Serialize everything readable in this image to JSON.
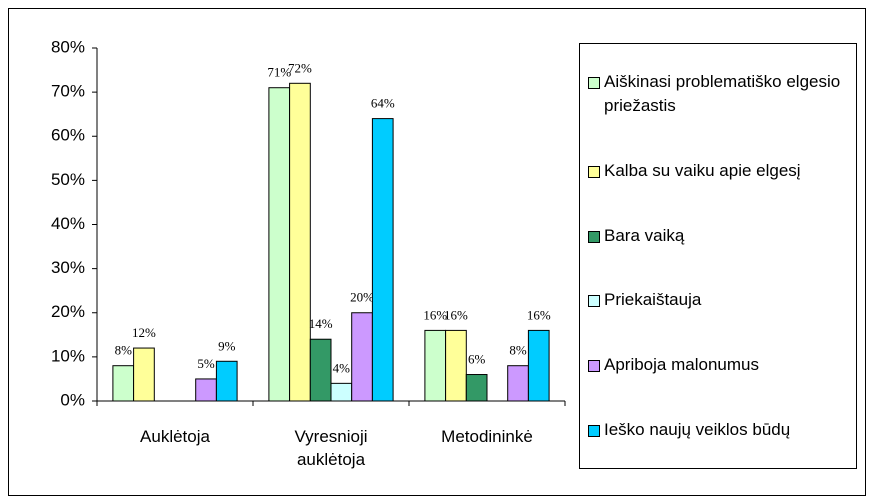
{
  "chart_data": {
    "type": "bar",
    "categories": [
      "Auklėtoja",
      "Vyresnioji auklėtoja",
      "Metodininkė"
    ],
    "series": [
      {
        "name": "Aiškinasi problematiško elgesio priežastis",
        "color": "#ccffcc",
        "values": [
          8,
          71,
          16
        ],
        "value_labels": [
          "8%",
          "71%",
          "16%"
        ]
      },
      {
        "name": "Kalba su vaiku apie elgesį",
        "color": "#ffff99",
        "values": [
          12,
          72,
          16
        ],
        "value_labels": [
          "12%",
          "72%",
          "16%"
        ]
      },
      {
        "name": "Bara vaiką",
        "color": "#339966",
        "values": [
          null,
          14,
          6
        ],
        "value_labels": [
          null,
          "14%",
          "6%"
        ]
      },
      {
        "name": "Priekaištauja",
        "color": "#ccffff",
        "values": [
          null,
          4,
          null
        ],
        "value_labels": [
          null,
          "4%",
          null
        ]
      },
      {
        "name": "Apriboja malonumus",
        "color": "#cc99ff",
        "values": [
          5,
          20,
          8
        ],
        "value_labels": [
          "5%",
          "20%",
          "8%"
        ]
      },
      {
        "name": "Ieško naujų veiklos būdų",
        "color": "#00ccff",
        "values": [
          9,
          64,
          16
        ],
        "value_labels": [
          "9%",
          "64%",
          "16%"
        ]
      }
    ],
    "ylim": [
      0,
      80
    ],
    "yticks": [
      {
        "value": 0,
        "label": "0%"
      },
      {
        "value": 10,
        "label": "10%"
      },
      {
        "value": 20,
        "label": "20%"
      },
      {
        "value": 30,
        "label": "30%"
      },
      {
        "value": 40,
        "label": "40%"
      },
      {
        "value": 50,
        "label": "50%"
      },
      {
        "value": 60,
        "label": "60%"
      },
      {
        "value": 70,
        "label": "70%"
      },
      {
        "value": 80,
        "label": "80%"
      }
    ],
    "legend": "right"
  }
}
